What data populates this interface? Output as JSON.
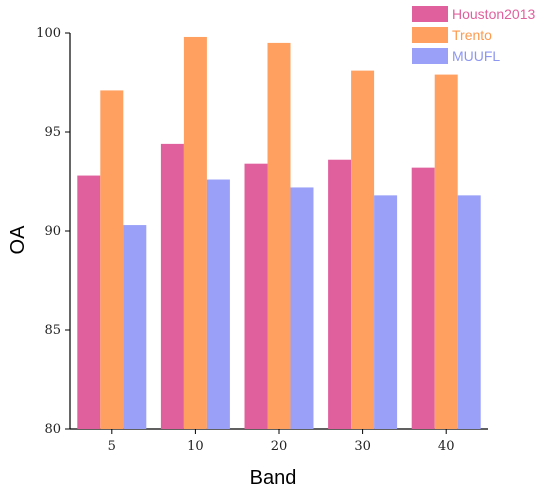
{
  "chart_data": {
    "type": "bar",
    "title": "",
    "xlabel": "Band",
    "ylabel": "OA",
    "categories": [
      "5",
      "10",
      "20",
      "30",
      "40"
    ],
    "series": [
      {
        "name": "Houston2013",
        "values": [
          92.8,
          94.4,
          93.4,
          93.6,
          93.2
        ],
        "color": "#e0609e",
        "legend_text_color": "#e0609e"
      },
      {
        "name": "Trento",
        "values": [
          97.1,
          99.8,
          99.5,
          98.1,
          97.9
        ],
        "color": "#ffa060",
        "legend_text_color": "#ff9a4d"
      },
      {
        "name": "MUUFL",
        "values": [
          90.3,
          92.6,
          92.2,
          91.8,
          91.8
        ],
        "color": "#9aa0f7",
        "legend_text_color": "#8e97f0"
      }
    ],
    "ylim": [
      80,
      100
    ],
    "yticks": [
      80,
      85,
      90,
      95,
      100
    ],
    "grid": false,
    "legend_position": "top-right"
  }
}
